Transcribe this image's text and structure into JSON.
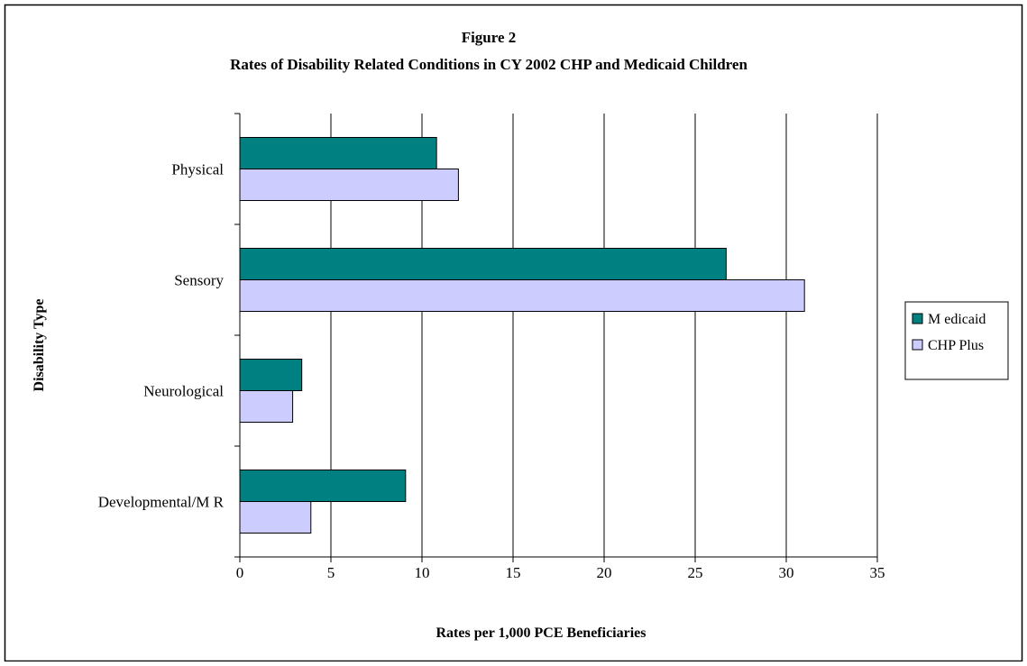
{
  "chart_data": {
    "type": "bar",
    "orientation": "horizontal",
    "title": "Figure 2",
    "subtitle": "Rates of Disability Related Conditions in CY 2002 CHP and Medicaid Children",
    "xlabel": "Rates per 1,000 PCE Beneficiaries",
    "ylabel": "Disability Type",
    "categories": [
      "Physical",
      "Sensory",
      "Neurological",
      "Developmental/M R"
    ],
    "xlim": [
      0,
      35
    ],
    "xticks": [
      0,
      5,
      10,
      15,
      20,
      25,
      30,
      35
    ],
    "grid": true,
    "legend_position": "right",
    "series": [
      {
        "name": "M edicaid",
        "color": "#008080",
        "values": [
          10.8,
          26.7,
          3.4,
          9.1
        ]
      },
      {
        "name": "CHP Plus",
        "color": "#ccccff",
        "values": [
          12.0,
          31.0,
          2.9,
          3.9
        ]
      }
    ]
  }
}
